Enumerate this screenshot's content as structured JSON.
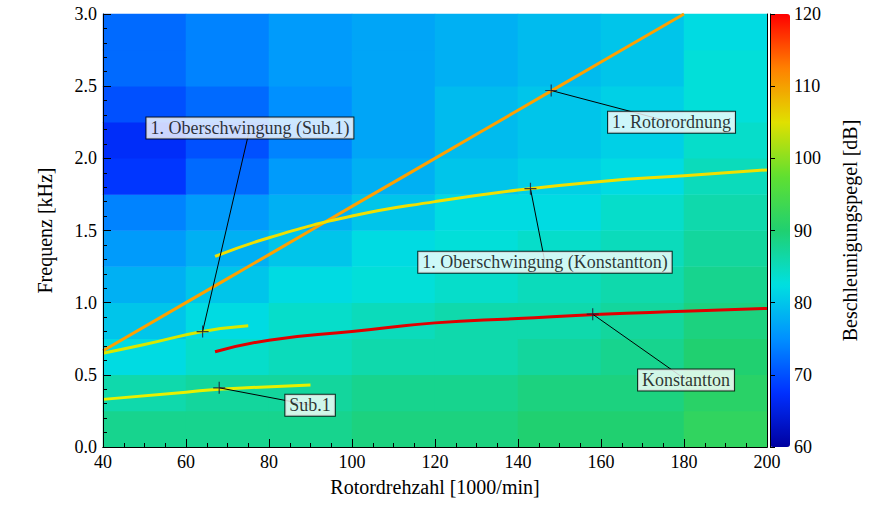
{
  "chart_data": {
    "type": "heatmap",
    "xlabel": "Rotordrehzahl [1000/min]",
    "ylabel": "Frequenz [kHz]",
    "xlim": [
      40,
      200
    ],
    "xticks": [
      40,
      60,
      80,
      100,
      120,
      140,
      160,
      180,
      200
    ],
    "ylim": [
      0,
      3
    ],
    "yticks": [
      {
        "value": 0,
        "label": "0.0"
      },
      {
        "value": 0.5,
        "label": "0.5"
      },
      {
        "value": 1,
        "label": "1.0"
      },
      {
        "value": 1.5,
        "label": "1.5"
      },
      {
        "value": 2,
        "label": "2.0"
      },
      {
        "value": 2.5,
        "label": "2.5"
      },
      {
        "value": 3,
        "label": "3.0"
      }
    ],
    "heatmap": {
      "x": [
        50,
        70,
        90,
        110,
        130,
        150,
        170,
        190
      ],
      "y": [
        0.125,
        0.375,
        0.625,
        0.875,
        1.125,
        1.375,
        1.625,
        1.875,
        2.125,
        2.375,
        2.625,
        2.875
      ],
      "values": [
        [
          88,
          88,
          88,
          89,
          89,
          90,
          90,
          92
        ],
        [
          86,
          87,
          87,
          88,
          88,
          89,
          89,
          91
        ],
        [
          82,
          84,
          85,
          86,
          86,
          87,
          88,
          90
        ],
        [
          80,
          82,
          84,
          85,
          86,
          86,
          87,
          89
        ],
        [
          78,
          80,
          82,
          83,
          84,
          85,
          86,
          88
        ],
        [
          76,
          78,
          80,
          82,
          83,
          84,
          85,
          87
        ],
        [
          74,
          76,
          78,
          80,
          82,
          82,
          84,
          86
        ],
        [
          68,
          72,
          76,
          78,
          80,
          81,
          82,
          85
        ],
        [
          67,
          70,
          74,
          77,
          79,
          80,
          81,
          84
        ],
        [
          70,
          72,
          75,
          77,
          79,
          80,
          81,
          83
        ],
        [
          72,
          74,
          76,
          77,
          78,
          79,
          80,
          83
        ],
        [
          72,
          74,
          76,
          77,
          78,
          79,
          80,
          82
        ]
      ]
    },
    "colorbar": {
      "label": "Beschleunigungspegel [dB]",
      "lim": [
        60,
        120
      ],
      "ticks": [
        60,
        70,
        80,
        90,
        100,
        110,
        120
      ]
    },
    "series": [
      {
        "type": "line",
        "color": "#ffa000",
        "x": [
          40,
          60,
          80,
          100,
          120,
          140,
          160,
          180
        ],
        "values": [
          0.667,
          1.0,
          1.333,
          1.667,
          2.0,
          2.333,
          2.667,
          3.0
        ]
      },
      {
        "type": "line",
        "color": "#e00000",
        "x": [
          67,
          80,
          100,
          120,
          140,
          160,
          180,
          200
        ],
        "values": [
          0.66,
          0.74,
          0.8,
          0.86,
          0.89,
          0.92,
          0.94,
          0.96
        ]
      },
      {
        "type": "line",
        "color": "#f0e000",
        "x": [
          67,
          80,
          100,
          120,
          140,
          160,
          180,
          200
        ],
        "values": [
          1.32,
          1.45,
          1.6,
          1.7,
          1.78,
          1.84,
          1.88,
          1.92
        ]
      },
      {
        "type": "line",
        "color": "#e8f000",
        "x": [
          40,
          60,
          68,
          90
        ],
        "values": [
          0.33,
          0.38,
          0.4,
          0.43
        ]
      },
      {
        "type": "line",
        "color": "#d8e800",
        "x": [
          40,
          50,
          64,
          75
        ],
        "values": [
          0.65,
          0.71,
          0.8,
          0.84
        ]
      }
    ],
    "annotations": [
      {
        "text": "1. Rotorordnung",
        "x": 148,
        "y": 2.47,
        "text_x": 177,
        "text_y": 2.25
      },
      {
        "text": "1. Oberschwingung (Konstantton)",
        "x": 143,
        "y": 1.79,
        "text_x": 146.5,
        "text_y": 1.28
      },
      {
        "text": "Konstantton",
        "x": 158,
        "y": 0.92,
        "text_x": 180.5,
        "text_y": 0.465
      },
      {
        "text": "Sub.1",
        "x": 68,
        "y": 0.41,
        "text_x": 89.9,
        "text_y": 0.29
      },
      {
        "text": "1. Oberschwingung (Sub.1)",
        "x": 64,
        "y": 0.8,
        "text_x": 75.4,
        "text_y": 2.21
      }
    ]
  }
}
